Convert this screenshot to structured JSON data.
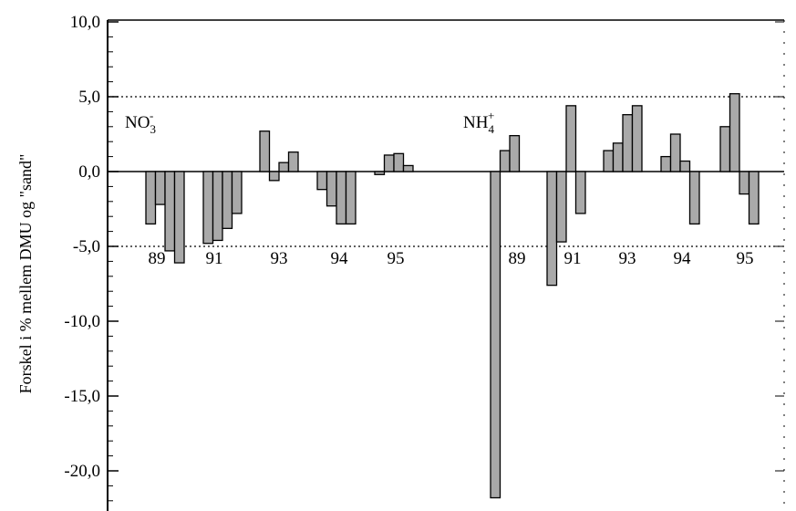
{
  "chart_data": {
    "type": "bar",
    "title": "",
    "xlabel": "",
    "ylabel": "Forskel i % mellem DMU og \"sand\"",
    "ylim": [
      -22.0,
      10.0
    ],
    "yticks": [
      "10,0",
      "5,0",
      "0,0",
      "-5,0",
      "-10,0",
      "-15,0",
      "-20,0"
    ],
    "ytick_values": [
      10,
      5,
      0,
      -5,
      -10,
      -15,
      -20
    ],
    "reference_lines": [
      5.0,
      -5.0
    ],
    "grid": false,
    "bar_color": "#a9a9a9",
    "panels": [
      {
        "ion": "NO3-",
        "ion_base": "NO",
        "ion_sub": "3",
        "ion_sup": "-",
        "groups": [
          {
            "label": "89",
            "values": [
              -3.5,
              -2.2,
              -5.3,
              -6.1
            ]
          },
          {
            "label": "91",
            "values": [
              -4.8,
              -4.6,
              -3.8,
              -2.8
            ]
          },
          {
            "label": "93",
            "values": [
              2.7,
              -0.6,
              0.6,
              1.3
            ]
          },
          {
            "label": "94",
            "values": [
              -1.2,
              -2.3,
              -3.5,
              -3.5
            ]
          },
          {
            "label": "95",
            "values": [
              -0.2,
              1.1,
              1.2,
              0.4
            ]
          }
        ]
      },
      {
        "ion": "NH4+",
        "ion_base": "NH",
        "ion_sub": "4",
        "ion_sup": "+",
        "groups": [
          {
            "label": "89",
            "values": [
              -21.8,
              1.4,
              2.4
            ]
          },
          {
            "label": "91",
            "values": [
              -7.6,
              -4.7,
              4.4,
              -2.8
            ]
          },
          {
            "label": "93",
            "values": [
              1.4,
              1.9,
              3.8,
              4.4
            ]
          },
          {
            "label": "94",
            "values": [
              1.0,
              2.5,
              0.7,
              -3.5
            ]
          },
          {
            "label": "95",
            "values": [
              3.0,
              5.2,
              -1.5,
              -3.5
            ]
          }
        ]
      }
    ]
  }
}
